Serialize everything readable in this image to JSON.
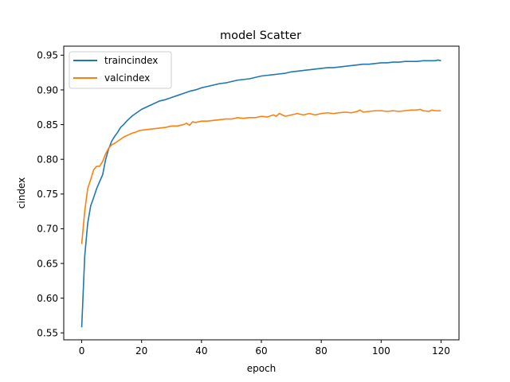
{
  "chart_data": {
    "type": "line",
    "title": "model Scatter",
    "xlabel": "epoch",
    "ylabel": "cindex",
    "xlim": [
      -6,
      126
    ],
    "ylim": [
      0.54,
      0.963
    ],
    "xticks": [
      0,
      20,
      40,
      60,
      80,
      100,
      120
    ],
    "yticks": [
      0.55,
      0.6,
      0.65,
      0.7,
      0.75,
      0.8,
      0.85,
      0.9,
      0.95
    ],
    "xtick_labels": [
      "0",
      "20",
      "40",
      "60",
      "80",
      "100",
      "120"
    ],
    "ytick_labels": [
      "0.55",
      "0.60",
      "0.65",
      "0.70",
      "0.75",
      "0.80",
      "0.85",
      "0.90",
      "0.95"
    ],
    "legend_position": "upper-left",
    "grid": false,
    "series": [
      {
        "name": "traincindex",
        "color": "#1f77b4",
        "points": [
          [
            0,
            0.558
          ],
          [
            1,
            0.66
          ],
          [
            2,
            0.708
          ],
          [
            3,
            0.733
          ],
          [
            4,
            0.745
          ],
          [
            5,
            0.758
          ],
          [
            6,
            0.768
          ],
          [
            7,
            0.778
          ],
          [
            8,
            0.8
          ],
          [
            9,
            0.815
          ],
          [
            10,
            0.826
          ],
          [
            11,
            0.833
          ],
          [
            12,
            0.839
          ],
          [
            13,
            0.846
          ],
          [
            14,
            0.85
          ],
          [
            15,
            0.855
          ],
          [
            16,
            0.859
          ],
          [
            17,
            0.863
          ],
          [
            18,
            0.866
          ],
          [
            19,
            0.869
          ],
          [
            20,
            0.872
          ],
          [
            22,
            0.876
          ],
          [
            24,
            0.88
          ],
          [
            26,
            0.884
          ],
          [
            28,
            0.886
          ],
          [
            30,
            0.889
          ],
          [
            32,
            0.892
          ],
          [
            34,
            0.895
          ],
          [
            36,
            0.898
          ],
          [
            38,
            0.9
          ],
          [
            40,
            0.903
          ],
          [
            42,
            0.905
          ],
          [
            44,
            0.907
          ],
          [
            46,
            0.909
          ],
          [
            48,
            0.91
          ],
          [
            50,
            0.912
          ],
          [
            52,
            0.914
          ],
          [
            54,
            0.915
          ],
          [
            56,
            0.916
          ],
          [
            58,
            0.918
          ],
          [
            60,
            0.92
          ],
          [
            62,
            0.921
          ],
          [
            64,
            0.922
          ],
          [
            66,
            0.923
          ],
          [
            68,
            0.924
          ],
          [
            70,
            0.926
          ],
          [
            72,
            0.927
          ],
          [
            74,
            0.928
          ],
          [
            76,
            0.929
          ],
          [
            78,
            0.93
          ],
          [
            80,
            0.931
          ],
          [
            82,
            0.932
          ],
          [
            84,
            0.932
          ],
          [
            86,
            0.933
          ],
          [
            88,
            0.934
          ],
          [
            90,
            0.935
          ],
          [
            92,
            0.936
          ],
          [
            94,
            0.937
          ],
          [
            96,
            0.937
          ],
          [
            98,
            0.938
          ],
          [
            100,
            0.939
          ],
          [
            102,
            0.939
          ],
          [
            104,
            0.94
          ],
          [
            106,
            0.94
          ],
          [
            108,
            0.941
          ],
          [
            110,
            0.941
          ],
          [
            112,
            0.941
          ],
          [
            114,
            0.942
          ],
          [
            116,
            0.942
          ],
          [
            118,
            0.942
          ],
          [
            119,
            0.943
          ],
          [
            120,
            0.942
          ]
        ]
      },
      {
        "name": "valcindex",
        "color": "#ff7f0e",
        "points": [
          [
            0,
            0.678
          ],
          [
            1,
            0.725
          ],
          [
            2,
            0.758
          ],
          [
            3,
            0.771
          ],
          [
            4,
            0.785
          ],
          [
            5,
            0.79
          ],
          [
            6,
            0.79
          ],
          [
            7,
            0.797
          ],
          [
            8,
            0.808
          ],
          [
            9,
            0.816
          ],
          [
            10,
            0.821
          ],
          [
            11,
            0.823
          ],
          [
            12,
            0.826
          ],
          [
            13,
            0.829
          ],
          [
            14,
            0.832
          ],
          [
            15,
            0.834
          ],
          [
            16,
            0.836
          ],
          [
            17,
            0.838
          ],
          [
            18,
            0.839
          ],
          [
            19,
            0.841
          ],
          [
            20,
            0.842
          ],
          [
            22,
            0.843
          ],
          [
            24,
            0.844
          ],
          [
            26,
            0.845
          ],
          [
            28,
            0.846
          ],
          [
            30,
            0.848
          ],
          [
            32,
            0.848
          ],
          [
            34,
            0.85
          ],
          [
            35,
            0.852
          ],
          [
            36,
            0.849
          ],
          [
            37,
            0.854
          ],
          [
            38,
            0.853
          ],
          [
            40,
            0.855
          ],
          [
            42,
            0.855
          ],
          [
            44,
            0.856
          ],
          [
            46,
            0.857
          ],
          [
            48,
            0.858
          ],
          [
            50,
            0.858
          ],
          [
            52,
            0.86
          ],
          [
            54,
            0.859
          ],
          [
            56,
            0.86
          ],
          [
            58,
            0.86
          ],
          [
            60,
            0.862
          ],
          [
            62,
            0.861
          ],
          [
            64,
            0.864
          ],
          [
            65,
            0.862
          ],
          [
            66,
            0.866
          ],
          [
            68,
            0.862
          ],
          [
            70,
            0.864
          ],
          [
            72,
            0.866
          ],
          [
            74,
            0.864
          ],
          [
            76,
            0.866
          ],
          [
            78,
            0.864
          ],
          [
            80,
            0.866
          ],
          [
            82,
            0.867
          ],
          [
            84,
            0.866
          ],
          [
            86,
            0.867
          ],
          [
            88,
            0.868
          ],
          [
            90,
            0.867
          ],
          [
            92,
            0.869
          ],
          [
            93,
            0.871
          ],
          [
            94,
            0.868
          ],
          [
            96,
            0.869
          ],
          [
            98,
            0.87
          ],
          [
            100,
            0.87
          ],
          [
            102,
            0.869
          ],
          [
            104,
            0.87
          ],
          [
            106,
            0.869
          ],
          [
            108,
            0.87
          ],
          [
            110,
            0.871
          ],
          [
            112,
            0.871
          ],
          [
            113,
            0.872
          ],
          [
            114,
            0.87
          ],
          [
            116,
            0.869
          ],
          [
            117,
            0.871
          ],
          [
            118,
            0.87
          ],
          [
            120,
            0.87
          ]
        ]
      }
    ]
  }
}
